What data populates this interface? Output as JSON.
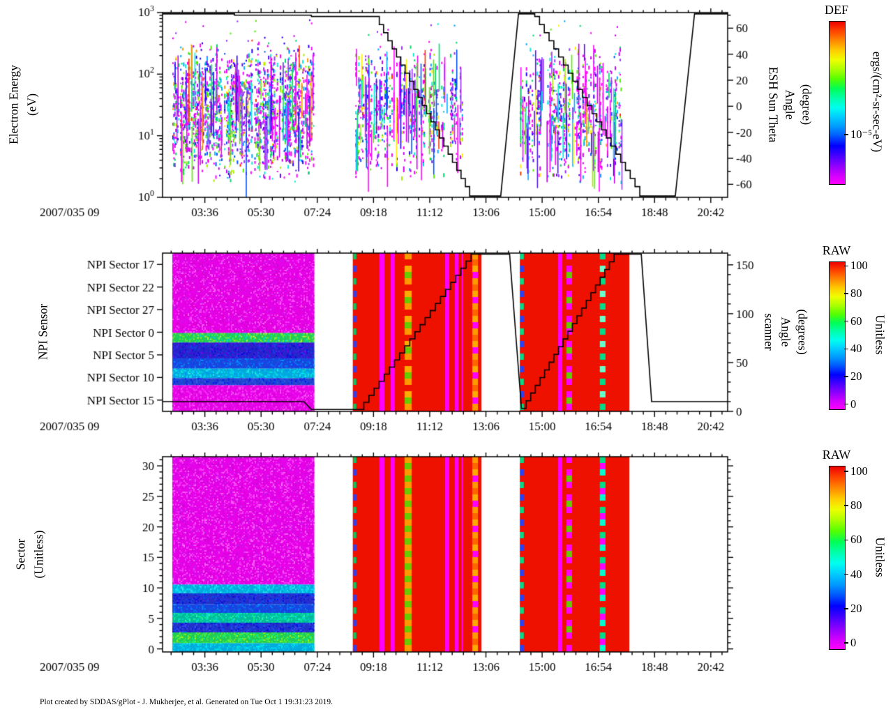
{
  "page": {
    "title": "SDDAS/gPlot spectrogram stack",
    "background": "#ffffff"
  },
  "footer": {
    "text": "Plot created by SDDAS/gPlot - J. Mukherjee, et al.  Generated on Tue Oct 1 19:31:23 2019."
  },
  "time_axis": {
    "date_label": "2007/035 09",
    "range_hours": [
      2.17,
      21.27
    ],
    "minor_step_h": 0.38,
    "ticks": [
      {
        "h": 3.6,
        "label": "03:36"
      },
      {
        "h": 5.5,
        "label": "05:30"
      },
      {
        "h": 7.4,
        "label": "07:24"
      },
      {
        "h": 9.3,
        "label": "09:18"
      },
      {
        "h": 11.2,
        "label": "11:12"
      },
      {
        "h": 13.1,
        "label": "13:06"
      },
      {
        "h": 15.0,
        "label": "15:00"
      },
      {
        "h": 16.9,
        "label": "16:54"
      },
      {
        "h": 18.8,
        "label": "18:48"
      },
      {
        "h": 20.7,
        "label": "20:42"
      }
    ]
  },
  "panels": {
    "top": {
      "left_title": [
        "Electron Energy",
        "(eV)"
      ],
      "right_title": [
        "ESH Sun Theta",
        "Angle",
        "(degree)"
      ]
    },
    "mid": {
      "left_title": [
        "NPI Sensor"
      ],
      "right_title": [
        "scanner",
        "Angle",
        "(degrees)"
      ]
    },
    "bot": {
      "left_title": [
        "Sector",
        "(Unitless)"
      ]
    }
  },
  "colorbars": {
    "def": {
      "title": "DEF",
      "units": "ergs/(cm²-sr-sec-eV)",
      "ticks": [
        {
          "f": 0.3,
          "label": "10⁻⁵"
        }
      ]
    },
    "raw_mid": {
      "title": "RAW",
      "units": "Unitless",
      "ticks": [
        {
          "v": 0,
          "label": "0"
        },
        {
          "v": 20,
          "label": "20"
        },
        {
          "v": 40,
          "label": "40"
        },
        {
          "v": 60,
          "label": "60"
        },
        {
          "v": 80,
          "label": "80"
        },
        {
          "v": 100,
          "label": "100"
        }
      ]
    },
    "raw_bot": {
      "title": "RAW",
      "units": "Unitless",
      "ticks": [
        {
          "v": 0,
          "label": "0"
        },
        {
          "v": 20,
          "label": "20"
        },
        {
          "v": 40,
          "label": "40"
        },
        {
          "v": 60,
          "label": "60"
        },
        {
          "v": 80,
          "label": "80"
        },
        {
          "v": 100,
          "label": "100"
        }
      ]
    }
  },
  "rainbow_stops": [
    "#ff00ff",
    "#cc00ff",
    "#8800ff",
    "#4400ff",
    "#0000ff",
    "#0055ff",
    "#0099ff",
    "#00ccff",
    "#00ffee",
    "#00ffaa",
    "#00ff55",
    "#55ff00",
    "#aaff00",
    "#eeff00",
    "#ffcc00",
    "#ff8800",
    "#ff4400",
    "#ee0000"
  ],
  "chart_data": [
    {
      "type": "heatmap",
      "title": "Electron energy spectrogram (DEF) with ESH Sun Theta angle overlay",
      "x_axis": {
        "label": "2007/035 09",
        "tick_labels": [
          "03:36",
          "05:30",
          "07:24",
          "09:18",
          "11:12",
          "13:06",
          "15:00",
          "16:54",
          "18:48",
          "20:42"
        ]
      },
      "y_axis": {
        "label": "Electron Energy (eV)",
        "scale": "log",
        "range": [
          1,
          1000
        ],
        "tick_exponents": [
          0,
          1,
          2,
          3
        ]
      },
      "y2_axis": {
        "label": "ESH Sun Theta Angle (degree)",
        "range": [
          -70,
          72
        ],
        "ticks": [
          -60,
          -40,
          -20,
          0,
          20,
          40,
          60
        ]
      },
      "colorbar": "def",
      "palette": [
        {
          "c": "#ff00ff",
          "w": 0.24
        },
        {
          "c": "#cc00ee",
          "w": 0.1
        },
        {
          "c": "#9933ff",
          "w": 0.1
        },
        {
          "c": "#5511ee",
          "w": 0.07
        },
        {
          "c": "#2200ff",
          "w": 0.06
        },
        {
          "c": "#0055ff",
          "w": 0.06
        },
        {
          "c": "#00aaff",
          "w": 0.06
        },
        {
          "c": "#00eedd",
          "w": 0.07
        },
        {
          "c": "#00dd66",
          "w": 0.08
        },
        {
          "c": "#55ee00",
          "w": 0.07
        },
        {
          "c": "#aaee00",
          "w": 0.04
        },
        {
          "c": "#ffee00",
          "w": 0.025
        },
        {
          "c": "#ff9900",
          "w": 0.015
        },
        {
          "c": "#ff3300",
          "w": 0.01
        }
      ],
      "bursts": [
        {
          "t0": 2.5,
          "t1": 7.3,
          "gap": 0.15,
          "den": 1.2,
          "streaks": 80
        },
        {
          "t0": 8.65,
          "t1": 12.3,
          "gap": 0.4,
          "den": 0.8,
          "streaks": 70
        },
        {
          "t0": 14.25,
          "t1": 17.7,
          "gap": 0.38,
          "den": 0.85,
          "streaks": 70
        }
      ],
      "overlay_line": {
        "name": "ESH Sun Theta Angle",
        "color": "#000000",
        "segments": [
          {
            "k": "flat",
            "t0": 2.17,
            "t1": 4.6,
            "v": 71
          },
          {
            "k": "flat",
            "t0": 4.6,
            "t1": 7.2,
            "v": 70
          },
          {
            "k": "flat",
            "t0": 7.2,
            "t1": 9.35,
            "v": 69
          },
          {
            "k": "stair",
            "t0": 9.35,
            "t1": 12.55,
            "v0": 69,
            "v1": -68,
            "n": 22
          },
          {
            "k": "flat",
            "t0": 12.55,
            "t1": 13.6,
            "v": -69
          },
          {
            "k": "ramp",
            "t0": 13.6,
            "t1": 14.2,
            "v0": -69,
            "v1": 71
          },
          {
            "k": "flat",
            "t0": 14.2,
            "t1": 14.75,
            "v": 71
          },
          {
            "k": "stair",
            "t0": 14.75,
            "t1": 18.3,
            "v0": 69,
            "v1": -68,
            "n": 22
          },
          {
            "k": "flat",
            "t0": 18.3,
            "t1": 19.5,
            "v": -69
          },
          {
            "k": "ramp",
            "t0": 19.5,
            "t1": 20.15,
            "v0": -69,
            "v1": 71
          },
          {
            "k": "flat",
            "t0": 20.15,
            "t1": 21.27,
            "v": 71
          }
        ]
      }
    },
    {
      "type": "heatmap",
      "title": "NPI Sensor raw counts with scanner angle overlay",
      "y_axis": {
        "label": "NPI Sensor",
        "ticks": [
          "NPI Sector 17",
          "NPI Sector 22",
          "NPI Sector 27",
          "NPI Sector 0",
          "NPI Sector 5",
          "NPI Sector 10",
          "NPI Sector 15"
        ]
      },
      "y2_axis": {
        "label": "scanner Angle (degrees)",
        "range": [
          0,
          162
        ],
        "ticks": [
          0,
          50,
          100,
          150
        ]
      },
      "colorbar": "raw_mid",
      "red_base": "#ee1100",
      "noise_bands": [
        {
          "f0": 0.0,
          "f1": 0.505,
          "base": "#e800e8",
          "spk": [
            "#ff55ff",
            "#cc00cc",
            "#bb22ee",
            "#ff88ff",
            "#d800b8"
          ]
        },
        {
          "f0": 0.505,
          "f1": 0.565,
          "base": "#22cc55",
          "spk": [
            "#88ff22",
            "#ccff00",
            "#00ffaa",
            "#ffff33",
            "#00ccff"
          ]
        },
        {
          "f0": 0.565,
          "f1": 0.665,
          "base": "#2424c8",
          "spk": [
            "#0000ee",
            "#4433ff",
            "#6600ee",
            "#0055ff",
            "#8800ff"
          ]
        },
        {
          "f0": 0.665,
          "f1": 0.73,
          "base": "#1548dd",
          "spk": [
            "#0077ff",
            "#2233ff",
            "#00aaff",
            "#3355ee"
          ]
        },
        {
          "f0": 0.73,
          "f1": 0.79,
          "base": "#00aadd",
          "spk": [
            "#00ffff",
            "#00ddff",
            "#44ffee",
            "#00ffcc",
            "#0088ff"
          ]
        },
        {
          "f0": 0.79,
          "f1": 0.835,
          "base": "#2244cc",
          "spk": [
            "#0000ff",
            "#4466ff",
            "#2222dd",
            "#0066ff"
          ]
        },
        {
          "f0": 0.835,
          "f1": 1.0,
          "base": "#e800e8",
          "spk": [
            "#ff55ff",
            "#cc00cc",
            "#dd22dd",
            "#ff88ff"
          ]
        }
      ],
      "blocks": [
        {
          "kind": "noise",
          "t0": 2.5,
          "t1": 7.3
        },
        {
          "kind": "red",
          "t0": 8.6,
          "t1": 12.95,
          "stripes": [
            {
              "t0": 8.62,
              "t1": 8.72,
              "style": "dash",
              "colors": [
                "#00cc66",
                "#ee1100",
                "#2244ff",
                "#ee1100"
              ]
            },
            {
              "t0": 9.5,
              "t1": 9.67,
              "style": "solid",
              "color": "#ff00ff"
            },
            {
              "t0": 9.88,
              "t1": 10.02,
              "style": "solid",
              "color": "#ff00ff"
            },
            {
              "t0": 10.35,
              "t1": 10.59,
              "style": "dash",
              "colors": [
                "#ff9900",
                "#ee1100",
                "#ffaa00",
                "#66cc00"
              ]
            },
            {
              "t0": 11.72,
              "t1": 11.86,
              "style": "solid",
              "color": "#ff00ff"
            },
            {
              "t0": 12.05,
              "t1": 12.17,
              "style": "solid",
              "color": "#ff00ff"
            },
            {
              "t0": 12.28,
              "t1": 12.33,
              "style": "solid",
              "color": "#ff00ff"
            },
            {
              "t0": 12.64,
              "t1": 12.83,
              "style": "dash",
              "colors": [
                "#ff9900",
                "#ff6600",
                "#ffaa00",
                "#ff00ff"
              ]
            }
          ]
        },
        {
          "kind": "red",
          "t0": 14.25,
          "t1": 17.95,
          "stripes": [
            {
              "t0": 14.25,
              "t1": 14.38,
              "style": "dash",
              "colors": [
                "#00dd88",
                "#ee1100",
                "#2244ff",
                "#ee1100"
              ]
            },
            {
              "t0": 15.54,
              "t1": 15.68,
              "style": "solid",
              "color": "#ff00ff"
            },
            {
              "t0": 15.82,
              "t1": 16.01,
              "style": "dash",
              "colors": [
                "#ff00ff",
                "#ee1100",
                "#ff00ff",
                "#66cc00"
              ]
            },
            {
              "t0": 16.95,
              "t1": 17.14,
              "style": "dash",
              "colors": [
                "#00dd88",
                "#ee1100",
                "#66ffcc",
                "#ee1100"
              ]
            }
          ]
        }
      ],
      "overlay_line": {
        "name": "scanner Angle",
        "color": "#000000",
        "segments": [
          {
            "k": "flat",
            "t0": 2.17,
            "t1": 6.95,
            "v": 10
          },
          {
            "k": "ramp",
            "t0": 6.95,
            "t1": 7.2,
            "v0": 10,
            "v1": 2
          },
          {
            "k": "flat",
            "t0": 7.2,
            "t1": 8.8,
            "v": 2
          },
          {
            "k": "stair",
            "t0": 8.8,
            "t1": 12.6,
            "v0": 2,
            "v1": 161,
            "n": 22
          },
          {
            "k": "flat",
            "t0": 12.6,
            "t1": 13.9,
            "v": 161
          },
          {
            "k": "ramp",
            "t0": 13.9,
            "t1": 14.3,
            "v0": 161,
            "v1": 3
          },
          {
            "k": "stair",
            "t0": 14.3,
            "t1": 17.43,
            "v0": 3,
            "v1": 161,
            "n": 20
          },
          {
            "k": "flat",
            "t0": 17.43,
            "t1": 18.35,
            "v": 161
          },
          {
            "k": "ramp",
            "t0": 18.35,
            "t1": 18.7,
            "v0": 161,
            "v1": 10
          },
          {
            "k": "flat",
            "t0": 18.7,
            "t1": 21.27,
            "v": 10
          }
        ]
      }
    },
    {
      "type": "heatmap",
      "title": "Sector raw counts",
      "y_axis": {
        "label": "Sector (Unitless)",
        "range": [
          -0.5,
          31.5
        ],
        "major_ticks": [
          0,
          5,
          10,
          15,
          20,
          25,
          30
        ]
      },
      "colorbar": "raw_bot",
      "red_base": "#ee1100",
      "noise_bands": [
        {
          "f0": 0.0,
          "f1": 0.655,
          "base": "#e800e8",
          "spk": [
            "#ff55ff",
            "#cc00cc",
            "#bb22ee",
            "#ff88ff"
          ]
        },
        {
          "f0": 0.655,
          "f1": 0.7,
          "base": "#00aadd",
          "spk": [
            "#00ffff",
            "#00ddff",
            "#44ffee"
          ]
        },
        {
          "f0": 0.7,
          "f1": 0.755,
          "base": "#2330c8",
          "spk": [
            "#0000ee",
            "#4433ff",
            "#0055ff"
          ]
        },
        {
          "f0": 0.755,
          "f1": 0.8,
          "base": "#1548dd",
          "spk": [
            "#0077ff",
            "#2233ff",
            "#00aaff"
          ]
        },
        {
          "f0": 0.8,
          "f1": 0.85,
          "base": "#00bb99",
          "spk": [
            "#00ffcc",
            "#44ffaa",
            "#00ddff",
            "#00ff88"
          ]
        },
        {
          "f0": 0.85,
          "f1": 0.9,
          "base": "#2330c8",
          "spk": [
            "#0000ee",
            "#4455ff",
            "#0055ff"
          ]
        },
        {
          "f0": 0.9,
          "f1": 0.955,
          "base": "#22cc55",
          "spk": [
            "#88ff22",
            "#00ffaa",
            "#ccff00",
            "#44ff44"
          ]
        },
        {
          "f0": 0.955,
          "f1": 1.0,
          "base": "#00aadd",
          "spk": [
            "#00ffff",
            "#00ddff",
            "#00ffcc"
          ]
        }
      ],
      "blocks": [
        {
          "kind": "noise",
          "t0": 2.5,
          "t1": 7.3
        },
        {
          "kind": "red",
          "t0": 8.6,
          "t1": 12.95,
          "stripes": [
            {
              "t0": 8.62,
              "t1": 8.72,
              "style": "dash",
              "colors": [
                "#00cc66",
                "#ee1100",
                "#2244ff",
                "#ee1100"
              ]
            },
            {
              "t0": 9.5,
              "t1": 9.67,
              "style": "solid",
              "color": "#ff00ff"
            },
            {
              "t0": 9.88,
              "t1": 10.02,
              "style": "solid",
              "color": "#ff00ff"
            },
            {
              "t0": 10.35,
              "t1": 10.59,
              "style": "dash",
              "colors": [
                "#ff9900",
                "#66cc00"
              ]
            },
            {
              "t0": 11.72,
              "t1": 11.86,
              "style": "solid",
              "color": "#ff00ff"
            },
            {
              "t0": 12.05,
              "t1": 12.17,
              "style": "solid",
              "color": "#ff00ff"
            },
            {
              "t0": 12.28,
              "t1": 12.33,
              "style": "solid",
              "color": "#ff00ff"
            },
            {
              "t0": 12.64,
              "t1": 12.83,
              "style": "dash",
              "colors": [
                "#ff9900",
                "#ff6600",
                "#ffaa00",
                "#ff00ff"
              ]
            }
          ]
        },
        {
          "kind": "red",
          "t0": 14.25,
          "t1": 17.95,
          "stripes": [
            {
              "t0": 14.25,
              "t1": 14.38,
              "style": "dash",
              "colors": [
                "#00dd88",
                "#ee1100",
                "#2244ff",
                "#ee1100"
              ]
            },
            {
              "t0": 15.54,
              "t1": 15.68,
              "style": "solid",
              "color": "#ff00ff"
            },
            {
              "t0": 15.82,
              "t1": 16.01,
              "style": "dash",
              "colors": [
                "#ff00ff",
                "#ee1100",
                "#ff00ff",
                "#66cc00"
              ]
            },
            {
              "t0": 16.95,
              "t1": 17.14,
              "style": "dash",
              "colors": [
                "#00dd88",
                "#ff00ff",
                "#00ffcc",
                "#ee1100"
              ]
            }
          ]
        }
      ]
    }
  ]
}
